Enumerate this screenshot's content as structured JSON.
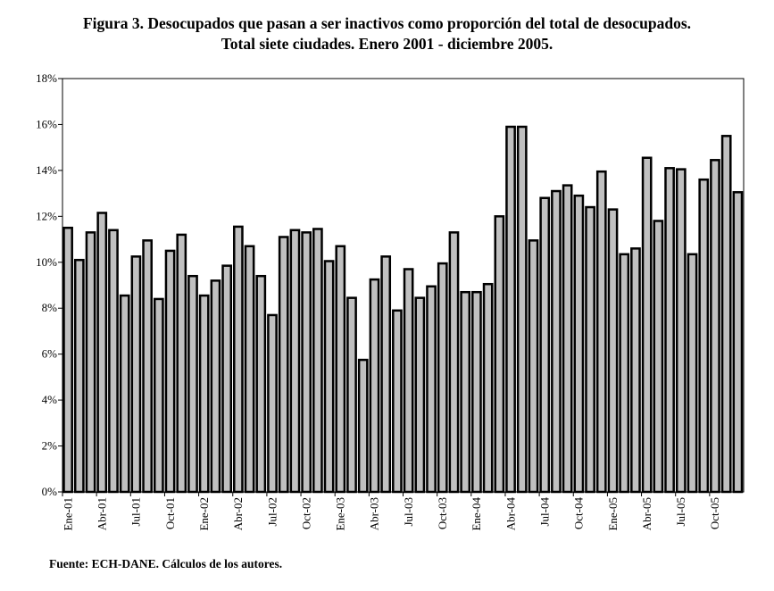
{
  "chart_data": {
    "type": "bar",
    "title": "Figura 3. Desocupados que pasan a ser inactivos como proporción del total de desocupados.",
    "subtitle": "Total siete ciudades. Enero 2001 - diciembre 2005.",
    "xlabel": "",
    "ylabel": "",
    "ylim": [
      0,
      18
    ],
    "yticks": [
      "0%",
      "2%",
      "4%",
      "6%",
      "8%",
      "10%",
      "12%",
      "14%",
      "16%",
      "18%"
    ],
    "xtick_labels": [
      "Ene-01",
      "Abr-01",
      "Jul-01",
      "Oct-01",
      "Ene-02",
      "Abr-02",
      "Jul-02",
      "Oct-02",
      "Ene-03",
      "Abr-03",
      "Jul-03",
      "Oct-03",
      "Ene-04",
      "Abr-04",
      "Jul-04",
      "Oct-04",
      "Ene-05",
      "Abr-05",
      "Jul-05",
      "Oct-05"
    ],
    "xtick_every_months": 3,
    "grid": false,
    "bar_color": "#c0c0c0",
    "bar_edge_color": "#000000",
    "values": [
      11.5,
      10.1,
      11.3,
      12.15,
      11.4,
      8.55,
      10.25,
      10.95,
      8.4,
      10.5,
      11.2,
      9.4,
      8.55,
      9.2,
      9.85,
      11.55,
      10.7,
      9.4,
      7.7,
      11.1,
      11.4,
      11.3,
      11.45,
      10.05,
      10.7,
      8.45,
      5.75,
      9.25,
      10.25,
      7.9,
      9.7,
      8.45,
      8.95,
      9.95,
      11.3,
      8.7,
      8.7,
      9.05,
      12.0,
      15.9,
      15.9,
      10.95,
      12.8,
      13.1,
      13.35,
      12.9,
      12.4,
      13.95,
      12.3,
      10.35,
      10.6,
      14.55,
      11.8,
      14.1,
      14.05,
      10.35,
      13.6,
      14.45,
      15.5,
      13.05
    ]
  },
  "source": "Fuente: ECH-DANE. Cálculos de los autores."
}
